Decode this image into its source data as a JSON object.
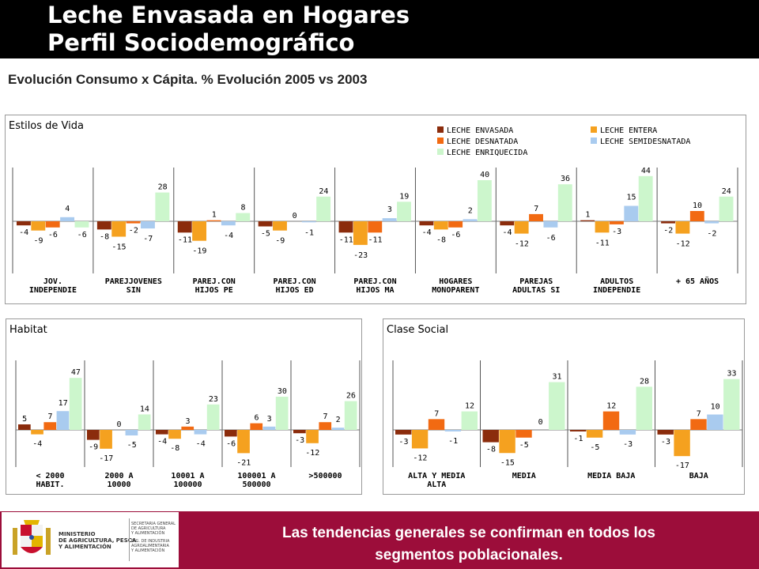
{
  "header": {
    "title_line1": "Leche Envasada en Hogares",
    "title_line2": "Perfil Sociodemográfico"
  },
  "subtitle": "Evolución Consumo x Cápita.  % Evolución 2005 vs 2003",
  "colors": {
    "leche_envasada": "#8b2c0c",
    "leche_entera": "#f5a11f",
    "leche_desnatada": "#f26a12",
    "leche_semidesnatada": "#a9cbef",
    "leche_enriquecida": "#ccf6cc",
    "footer_bg": "#9c0d3a"
  },
  "legend": [
    "LECHE ENVASADA",
    "LECHE ENTERA",
    "LECHE DESNATADA",
    "LECHE SEMIDESNATADA",
    "LECHE ENRIQUECIDA"
  ],
  "chart_data": [
    {
      "type": "bar",
      "title": "Estilos de Vida",
      "categories": [
        [
          "JOV.",
          "INDEPENDIE"
        ],
        [
          "PAREJJOVENES",
          "SIN"
        ],
        [
          "PAREJ.CON",
          "HIJOS PE"
        ],
        [
          "PAREJ.CON",
          "HIJOS ED"
        ],
        [
          "PAREJ.CON",
          "HIJOS MA"
        ],
        [
          "HOGARES",
          "MONOPARENT"
        ],
        [
          "PAREJAS",
          "ADULTAS SI"
        ],
        [
          "ADULTOS",
          "INDEPENDIE"
        ],
        [
          "+ 65 AÑOS"
        ]
      ],
      "legend": "top-right",
      "series": [
        {
          "name": "LECHE ENVASADA",
          "values": [
            -4,
            -8,
            -11,
            -5,
            -11,
            -4,
            -4,
            1,
            -2
          ]
        },
        {
          "name": "LECHE ENTERA",
          "values": [
            -9,
            -15,
            -19,
            -9,
            -23,
            -8,
            -12,
            -11,
            -12
          ]
        },
        {
          "name": "LECHE DESNATADA",
          "values": [
            -6,
            -2,
            1,
            0,
            -11,
            -6,
            7,
            -3,
            10
          ]
        },
        {
          "name": "LECHE SEMIDESNATADA",
          "values": [
            4,
            -7,
            -4,
            -1,
            3,
            2,
            -6,
            15,
            -2
          ]
        },
        {
          "name": "LECHE ENRIQUECIDA",
          "values": [
            -6,
            28,
            8,
            24,
            19,
            40,
            36,
            44,
            24
          ]
        }
      ]
    },
    {
      "type": "bar",
      "title": "Habitat",
      "categories": [
        [
          "< 2000",
          "HABIT."
        ],
        [
          "2000 A",
          "10000"
        ],
        [
          "10001 A",
          "100000"
        ],
        [
          "100001 A",
          "500000"
        ],
        [
          ">500000"
        ]
      ],
      "series": [
        {
          "name": "LECHE ENVASADA",
          "values": [
            5,
            -9,
            -4,
            -6,
            -3
          ]
        },
        {
          "name": "LECHE ENTERA",
          "values": [
            -4,
            -17,
            -8,
            -21,
            -12
          ]
        },
        {
          "name": "LECHE DESNATADA",
          "values": [
            7,
            0,
            3,
            6,
            7
          ]
        },
        {
          "name": "LECHE SEMIDESNATADA",
          "values": [
            17,
            -5,
            -4,
            3,
            2
          ]
        },
        {
          "name": "LECHE ENRIQUECIDA",
          "values": [
            47,
            14,
            23,
            30,
            26
          ]
        }
      ]
    },
    {
      "type": "bar",
      "title": "Clase Social",
      "categories": [
        [
          "ALTA Y MEDIA",
          "ALTA"
        ],
        [
          "MEDIA"
        ],
        [
          "MEDIA BAJA"
        ],
        [
          "BAJA"
        ]
      ],
      "series": [
        {
          "name": "LECHE ENVASADA",
          "values": [
            -3,
            -8,
            -1,
            -3
          ]
        },
        {
          "name": "LECHE ENTERA",
          "values": [
            -12,
            -15,
            -5,
            -17
          ]
        },
        {
          "name": "LECHE DESNATADA",
          "values": [
            7,
            -5,
            12,
            7
          ]
        },
        {
          "name": "LECHE SEMIDESNATADA",
          "values": [
            -1,
            0,
            -3,
            10
          ]
        },
        {
          "name": "LECHE ENRIQUECIDA",
          "values": [
            12,
            31,
            28,
            33
          ]
        }
      ]
    }
  ],
  "logo": {
    "ministry_line1": "MINISTERIO",
    "ministry_line2": "DE AGRICULTURA, PESCA",
    "ministry_line3": "Y ALIMENTACIÓN",
    "right_line1": "SECRETARIA GENERAL",
    "right_line2": "DE AGRICULTURA",
    "right_line3": "Y ALIMENTACIÓN",
    "right_line4": "D.G. DE INDUSTRIA",
    "right_line5": "AGROALIMENTARIA",
    "right_line6": "Y ALIMENTACIÓN"
  },
  "footer": {
    "line1": "Las tendencias generales se confirman en todos los",
    "line2": "segmentos poblacionales."
  }
}
